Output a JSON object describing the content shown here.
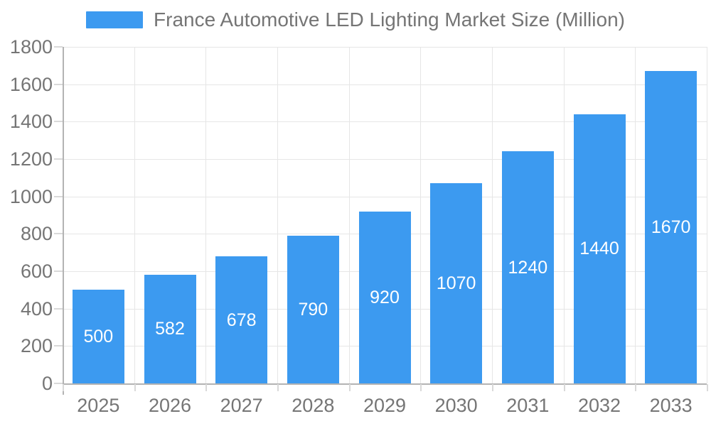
{
  "chart_data": {
    "type": "bar",
    "title": "France Automotive LED Lighting Market Size (Million)",
    "legend_entries": [
      "France Automotive LED Lighting Market Size (Million)"
    ],
    "legend_position": "top",
    "categories": [
      "2025",
      "2026",
      "2027",
      "2028",
      "2029",
      "2030",
      "2031",
      "2032",
      "2033"
    ],
    "values": [
      500,
      582,
      678,
      790,
      920,
      1070,
      1240,
      1440,
      1670
    ],
    "value_labels_shown": true,
    "value_label_position": "inside-center",
    "xlabel": "",
    "ylabel": "",
    "ylim": [
      0,
      1800
    ],
    "ytick_step": 200,
    "grid": true,
    "colors": {
      "bar": "#3c9af0",
      "grid": "#e6e6e6",
      "axis_line": "#b3b3b3",
      "tick": "#d9d9d9",
      "axis_text": "#757575",
      "value_label": "#ffffff",
      "background": "#ffffff"
    }
  }
}
